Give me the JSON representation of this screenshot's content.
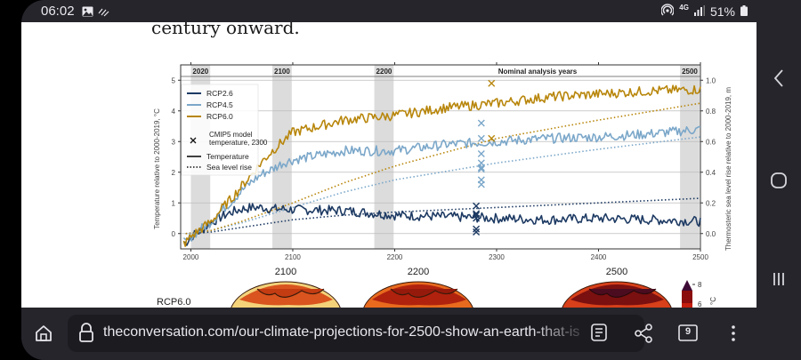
{
  "status_bar": {
    "time": "06:02",
    "left_icons": [
      "gallery-icon",
      "signal-wave-icon"
    ],
    "right_icons": [
      "hotspot-icon",
      "4g-icon",
      "signal-bars-icon",
      "battery-icon"
    ],
    "network": "4G",
    "battery": "51%"
  },
  "article": {
    "headline_fragment": "century onward."
  },
  "chart_data": {
    "type": "line",
    "x_axis": {
      "ticks": [
        "2000",
        "2100",
        "2200",
        "2300",
        "2400",
        "2500"
      ],
      "range": [
        1990,
        2500
      ]
    },
    "y_axis_left": {
      "label": "Temperature relative to 2000-2019, °C",
      "ticks": [
        "0",
        "1",
        "2",
        "3",
        "4",
        "5"
      ],
      "range": [
        -0.5,
        5.5
      ]
    },
    "y_axis_right": {
      "label": "Thermosteric sea level rise relative to 2000-2019, m",
      "ticks": [
        "0.0",
        "0.2",
        "0.4",
        "0.6",
        "0.8",
        "1.0"
      ],
      "range": [
        -0.1,
        1.1
      ]
    },
    "grid": true,
    "nominal_analysis_years": {
      "title": "Nominal analysis years",
      "years": [
        "2020",
        "2100",
        "2200",
        "2500"
      ],
      "bands": [
        [
          2000,
          2019
        ],
        [
          2080,
          2099
        ],
        [
          2180,
          2199
        ],
        [
          2480,
          2499
        ]
      ]
    },
    "legend": {
      "placement": "upper-left",
      "entries": [
        "RCP2.6",
        "RCP4.5",
        "RCP6.0",
        "CMIP5 model temperature, 2300",
        "Temperature",
        "Sea level rise"
      ]
    },
    "series": [
      {
        "name": "RCP2.6",
        "color": "#1d3a63",
        "temperature_x": [
          1995,
          2000,
          2010,
          2020,
          2030,
          2040,
          2050,
          2060,
          2070,
          2080,
          2090,
          2100,
          2150,
          2200,
          2250,
          2300,
          2350,
          2400,
          2450,
          2500
        ],
        "temperature_y": [
          -0.3,
          -0.1,
          0.1,
          0.35,
          0.55,
          0.7,
          0.8,
          0.85,
          0.85,
          0.8,
          0.8,
          0.78,
          0.75,
          0.6,
          0.55,
          0.5,
          0.45,
          0.5,
          0.45,
          0.4
        ],
        "sea_level_x": [
          1995,
          2020,
          2050,
          2100,
          2150,
          2200,
          2300,
          2400,
          2500
        ],
        "sea_level_y": [
          0.0,
          0.01,
          0.04,
          0.09,
          0.12,
          0.14,
          0.17,
          0.2,
          0.23
        ]
      },
      {
        "name": "RCP4.5",
        "color": "#7ba7c9",
        "temperature_x": [
          1995,
          2000,
          2010,
          2020,
          2030,
          2040,
          2050,
          2060,
          2070,
          2080,
          2090,
          2100,
          2150,
          2200,
          2250,
          2300,
          2350,
          2400,
          2450,
          2500
        ],
        "temperature_y": [
          -0.3,
          -0.1,
          0.15,
          0.4,
          0.75,
          1.05,
          1.4,
          1.7,
          1.95,
          2.1,
          2.3,
          2.4,
          2.7,
          2.7,
          2.9,
          3.0,
          3.1,
          3.15,
          3.25,
          3.4
        ],
        "sea_level_x": [
          1995,
          2020,
          2050,
          2100,
          2150,
          2200,
          2300,
          2400,
          2500
        ],
        "sea_level_y": [
          0.0,
          0.02,
          0.07,
          0.17,
          0.27,
          0.35,
          0.46,
          0.55,
          0.63
        ]
      },
      {
        "name": "RCP6.0",
        "color": "#b8860b",
        "temperature_x": [
          1995,
          2000,
          2010,
          2020,
          2030,
          2040,
          2050,
          2060,
          2070,
          2080,
          2090,
          2100,
          2150,
          2200,
          2250,
          2300,
          2350,
          2400,
          2450,
          2500
        ],
        "temperature_y": [
          -0.3,
          -0.1,
          0.15,
          0.4,
          0.8,
          1.15,
          1.55,
          1.95,
          2.35,
          2.7,
          3.0,
          3.3,
          3.7,
          3.85,
          4.1,
          4.25,
          4.45,
          4.55,
          4.65,
          4.7
        ],
        "sea_level_x": [
          1995,
          2020,
          2050,
          2100,
          2150,
          2200,
          2300,
          2400,
          2500
        ],
        "sea_level_y": [
          0.0,
          0.02,
          0.08,
          0.2,
          0.33,
          0.44,
          0.62,
          0.74,
          0.85
        ]
      }
    ],
    "cmip5_markers": [
      {
        "series": "RCP2.6",
        "x": 2280,
        "temps": [
          0.9,
          0.65,
          0.6,
          0.5,
          0.15,
          0.05
        ]
      },
      {
        "series": "RCP4.5",
        "x": 2285,
        "temps": [
          3.6,
          3.1,
          2.6,
          2.3,
          2.15,
          2.1,
          1.75,
          1.6
        ]
      },
      {
        "series": "RCP6.0",
        "x": 2295,
        "temps": [
          4.9,
          3.1
        ]
      }
    ]
  },
  "maps_section": {
    "row_label": "RCP6.0",
    "panel_titles": [
      "2100",
      "2200",
      "2500"
    ],
    "colorbar_ticks": [
      "8",
      "6"
    ],
    "colorbar_unit": "°C"
  },
  "browser": {
    "url": "theconversation.com/our-climate-projections-for-2500-show-an-earth-that-is",
    "tab_count": "9",
    "buttons": [
      "home-icon",
      "lock-icon",
      "reader-mode-icon",
      "share-icon",
      "tabs-icon",
      "more-icon"
    ]
  },
  "navigation": {
    "buttons": [
      "back",
      "home",
      "recents"
    ]
  }
}
